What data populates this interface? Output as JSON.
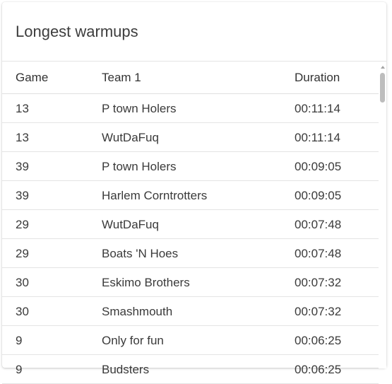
{
  "card": {
    "title": "Longest warmups"
  },
  "table": {
    "columns": {
      "game": "Game",
      "team": "Team 1",
      "duration": "Duration"
    },
    "rows": [
      {
        "game": "13",
        "team": "P town Holers",
        "duration": "00:11:14"
      },
      {
        "game": "13",
        "team": "WutDaFuq",
        "duration": "00:11:14"
      },
      {
        "game": "39",
        "team": "P town Holers",
        "duration": "00:09:05"
      },
      {
        "game": "39",
        "team": "Harlem Corntrotters",
        "duration": "00:09:05"
      },
      {
        "game": "29",
        "team": "WutDaFuq",
        "duration": "00:07:48"
      },
      {
        "game": "29",
        "team": "Boats 'N Hoes",
        "duration": "00:07:48"
      },
      {
        "game": "30",
        "team": "Eskimo Brothers",
        "duration": "00:07:32"
      },
      {
        "game": "30",
        "team": "Smashmouth",
        "duration": "00:07:32"
      },
      {
        "game": "9",
        "team": "Only for fun",
        "duration": "00:06:25"
      },
      {
        "game": "9",
        "team": "Budsters",
        "duration": "00:06:25"
      }
    ]
  },
  "icons": {
    "scroll_up": "scroll-up-arrow-icon"
  }
}
